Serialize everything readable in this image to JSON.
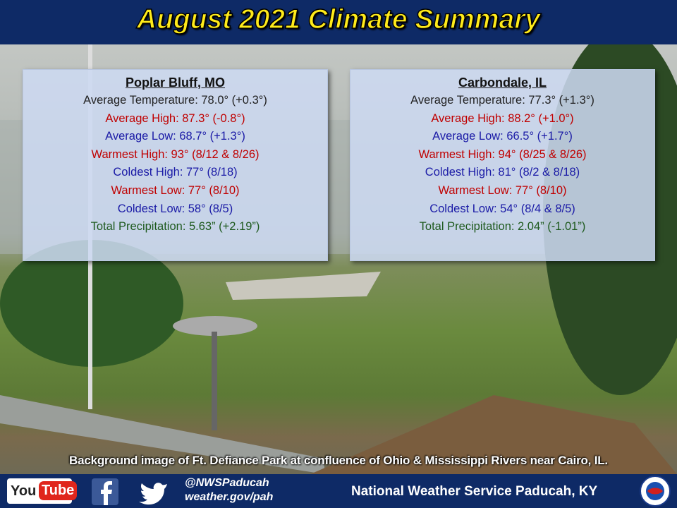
{
  "header": {
    "title": "August 2021 Climate Summary"
  },
  "panels": [
    {
      "station": "Poplar Bluff, MO",
      "lines": [
        {
          "text": "Average Temperature: 78.0° (+0.3°)",
          "color": "#222222"
        },
        {
          "text": "Average High: 87.3° (-0.8°)",
          "color": "#c00000"
        },
        {
          "text": "Average Low: 68.7° (+1.3°)",
          "color": "#1a1aa6"
        },
        {
          "text": "Warmest High: 93° (8/12 & 8/26)",
          "color": "#c00000"
        },
        {
          "text": "Coldest High: 77° (8/18)",
          "color": "#1a1aa6"
        },
        {
          "text": "Warmest Low: 77° (8/10)",
          "color": "#c00000"
        },
        {
          "text": "Coldest Low: 58° (8/5)",
          "color": "#1a1aa6"
        },
        {
          "text": "Total Precipitation: 5.63” (+2.19”)",
          "color": "#1e5a1e"
        }
      ]
    },
    {
      "station": "Carbondale, IL",
      "lines": [
        {
          "text": "Average Temperature: 77.3° (+1.3°)",
          "color": "#222222"
        },
        {
          "text": "Average High: 88.2° (+1.0°)",
          "color": "#c00000"
        },
        {
          "text": "Average Low: 66.5° (+1.7°)",
          "color": "#1a1aa6"
        },
        {
          "text": "Warmest High: 94° (8/25 & 8/26)",
          "color": "#c00000"
        },
        {
          "text": "Coldest High: 81° (8/2 & 8/18)",
          "color": "#1a1aa6"
        },
        {
          "text": "Warmest Low: 77° (8/10)",
          "color": "#c00000"
        },
        {
          "text": "Coldest Low: 54° (8/4 & 8/5)",
          "color": "#1a1aa6"
        },
        {
          "text": "Total Precipitation: 2.04” (-1.01”)",
          "color": "#1e5a1e"
        }
      ]
    }
  ],
  "caption": "Background image of Ft. Defiance Park at confluence of Ohio & Mississippi Rivers near Cairo, IL.",
  "footer": {
    "youtube_logo": [
      "You",
      "Tube"
    ],
    "handle": "@NWSPaducah",
    "website": "weather.gov/pah",
    "office": "National Weather Service Paducah, KY"
  }
}
